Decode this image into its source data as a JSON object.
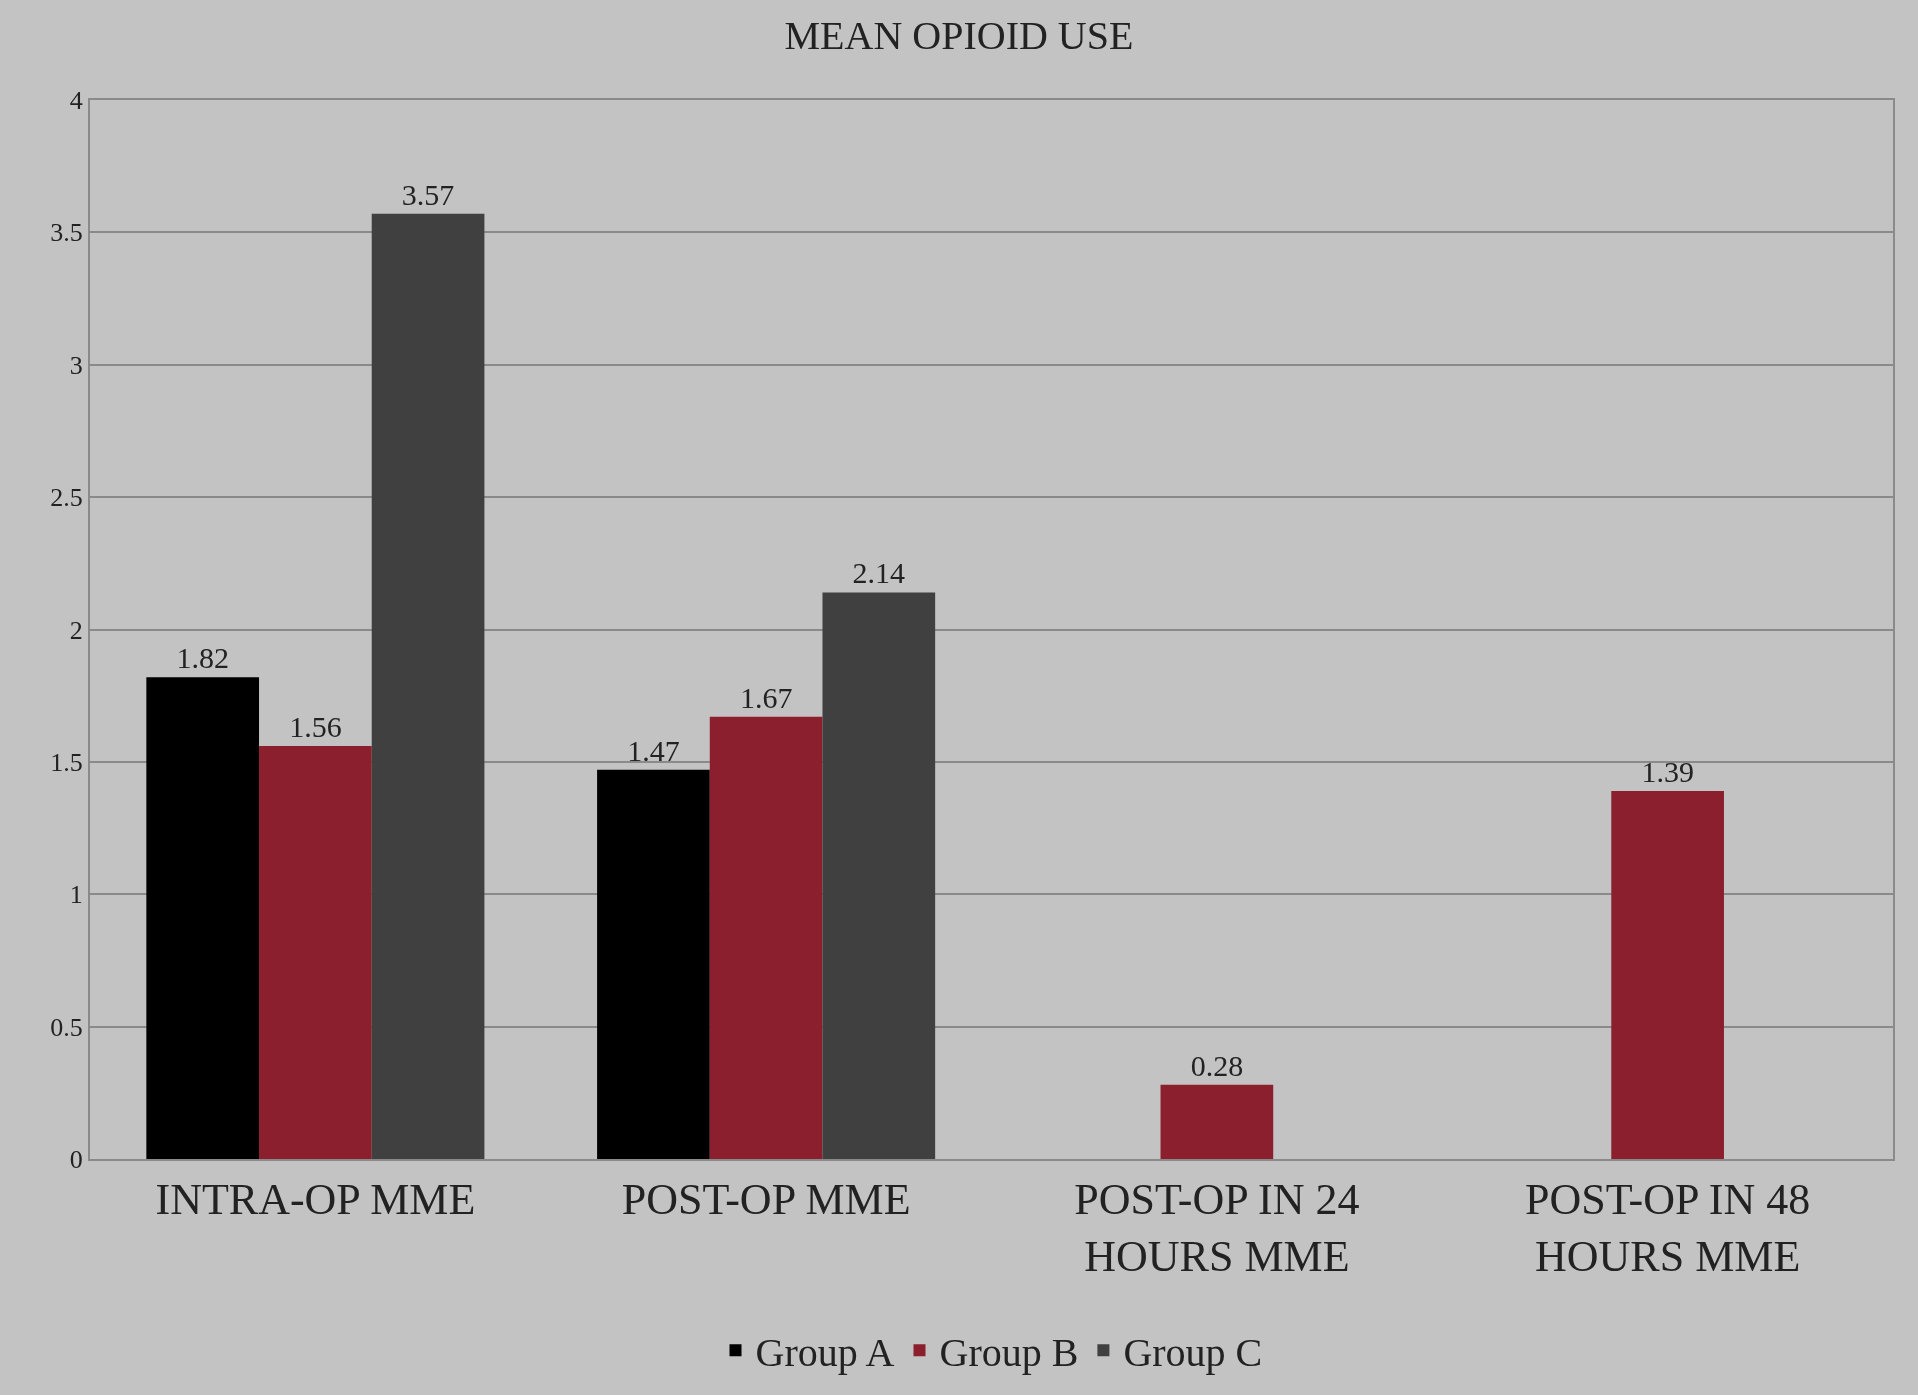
{
  "chart_data": {
    "type": "bar",
    "title": "MEAN OPIOID USE",
    "categories": [
      "INTRA-OP MME",
      "POST-OP MME",
      "POST-OP IN 24 HOURS MME",
      "POST-OP IN 48 HOURS MME"
    ],
    "series": [
      {
        "name": "Group A",
        "color": "#000000",
        "values": [
          1.82,
          1.47,
          null,
          null
        ]
      },
      {
        "name": "Group B",
        "color": "#8b1f2e",
        "values": [
          1.56,
          1.67,
          0.28,
          1.39
        ]
      },
      {
        "name": "Group C",
        "color": "#404040",
        "values": [
          3.57,
          2.14,
          null,
          null
        ]
      }
    ],
    "ylim": [
      0,
      4
    ],
    "yticks": [
      0,
      0.5,
      1,
      1.5,
      2,
      2.5,
      3,
      3.5,
      4
    ],
    "grid": "y",
    "legend": "bottom",
    "data_labels": true
  }
}
